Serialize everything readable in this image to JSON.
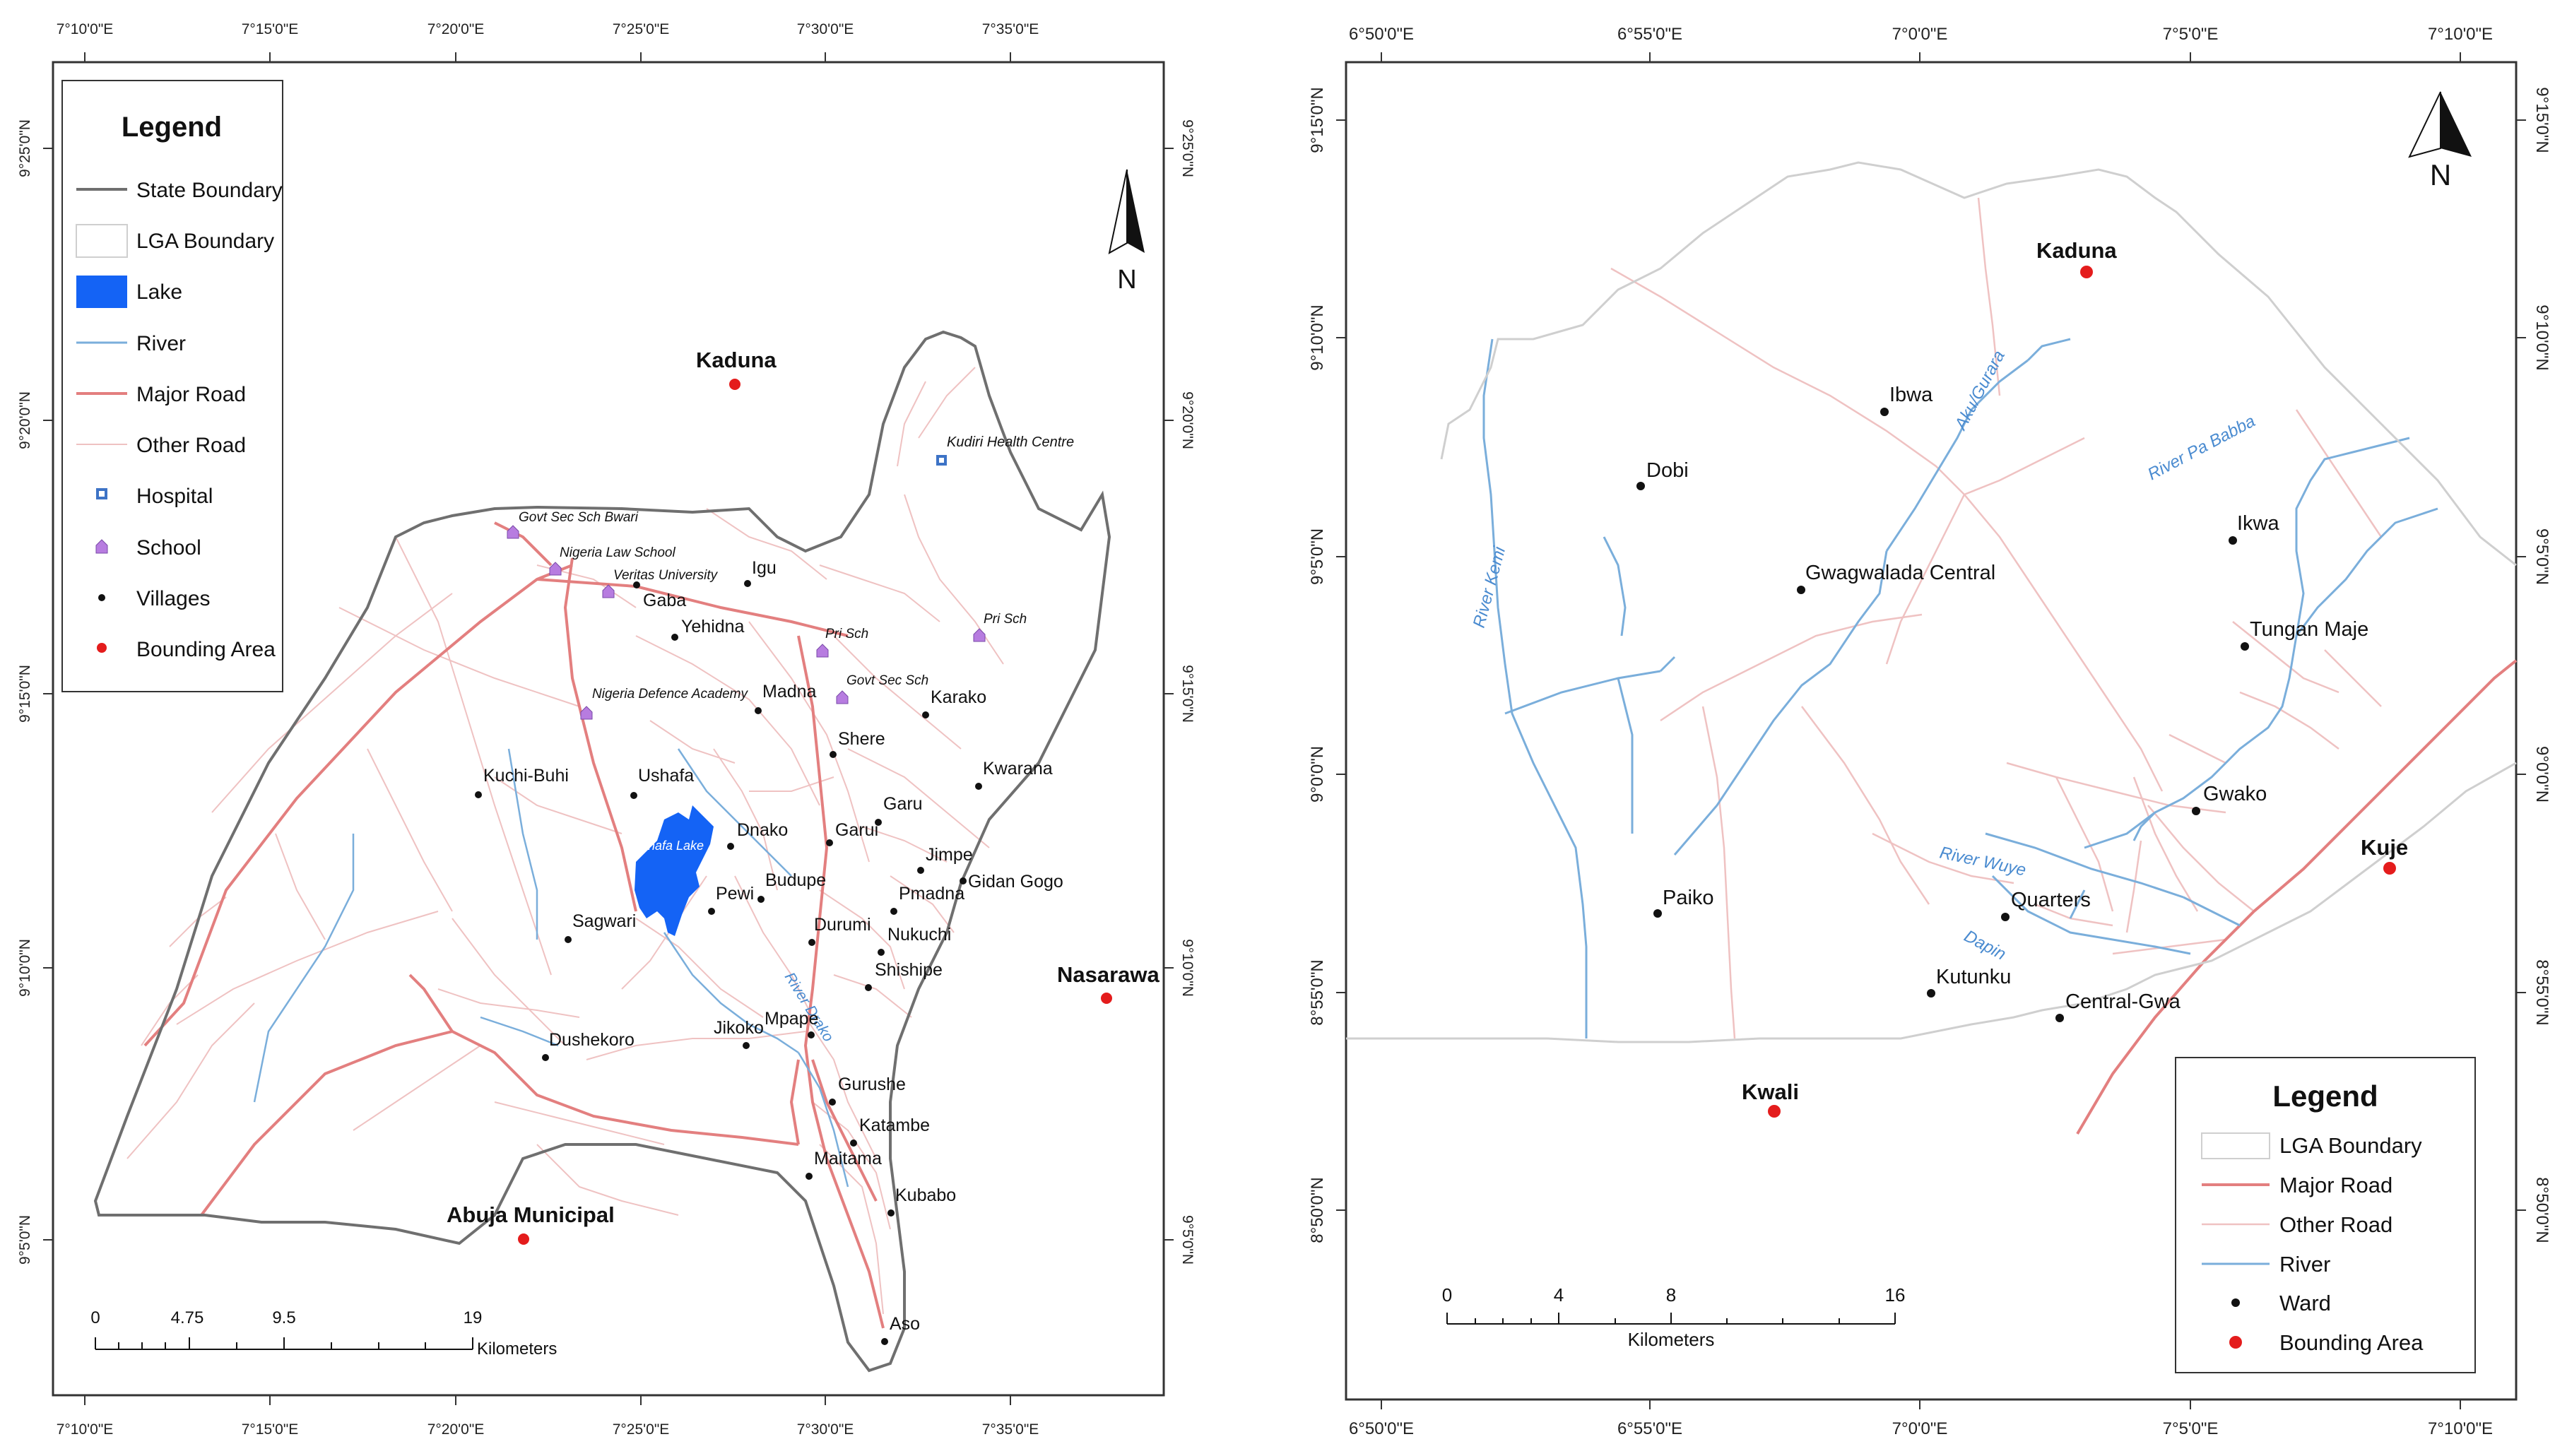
{
  "colors": {
    "state_boundary": "#6f6f6f",
    "lga_boundary": "#cfcfcf",
    "lake": "#1463f5",
    "river": "#7aaedb",
    "major_road": "#e37f7f",
    "other_road": "#efc2c2",
    "school": "#b77ce0",
    "hospital": "#3d73c6",
    "village": "#111111",
    "bounding_area": "#e41c1c"
  },
  "left_map": {
    "top_lon_labels": [
      "7°10'0\"E",
      "7°15'0\"E",
      "7°20'0\"E",
      "7°25'0\"E",
      "7°30'0\"E",
      "7°35'0\"E"
    ],
    "bottom_lon_labels": [
      "7°10'0\"E",
      "7°15'0\"E",
      "7°20'0\"E",
      "7°25'0\"E",
      "7°30'0\"E",
      "7°35'0\"E"
    ],
    "lat_labels": [
      "9°25'0\"N",
      "9°20'0\"N",
      "9°15'0\"N",
      "9°10'0\"N",
      "9°5'0\"N"
    ],
    "north_label": "N",
    "legend": {
      "title": "Legend",
      "items": [
        {
          "label": "State Boundary",
          "symbol": "state-boundary"
        },
        {
          "label": "LGA Boundary",
          "symbol": "lga-boundary"
        },
        {
          "label": "Lake",
          "symbol": "lake"
        },
        {
          "label": "River",
          "symbol": "river"
        },
        {
          "label": "Major Road",
          "symbol": "major-road"
        },
        {
          "label": "Other Road",
          "symbol": "other-road"
        },
        {
          "label": "Hospital",
          "symbol": "hospital"
        },
        {
          "label": "School",
          "symbol": "school"
        },
        {
          "label": "Villages",
          "symbol": "village"
        },
        {
          "label": "Bounding Area",
          "symbol": "bounding-area"
        }
      ]
    },
    "bounding_areas": [
      "Kaduna",
      "Nasarawa",
      "Abuja Municipal"
    ],
    "villages": [
      "Igu",
      "Gaba",
      "Yehidna",
      "Madna",
      "Karako",
      "Shere",
      "Kuchi-Buhi",
      "Ushafa",
      "Dnako",
      "Garu",
      "Garui",
      "Kwarana",
      "Jimpe",
      "Gidan Gogo",
      "Pewi",
      "Budupe",
      "Pmadna",
      "Sagwari",
      "Durumi",
      "Nukuchi",
      "Shishipe",
      "Dushekoro",
      "Jikoko",
      "Mpape",
      "Gurushe",
      "Katambe",
      "Maitama",
      "Kubabo",
      "Aso"
    ],
    "schools": [
      "Govt Sec Sch Bwari",
      "Nigeria Law School",
      "Veritas University",
      "Pri Sch",
      "Pri Sch",
      "Govt Sec Sch",
      "Nigeria Defence Academy"
    ],
    "hospitals": [
      "Kudiri Health Centre"
    ],
    "lake_label": "Ushafa Lake",
    "river_label": "River Drako",
    "scale": {
      "ticks": [
        "0",
        "4.75",
        "9.5",
        "19"
      ],
      "unit": "Kilometers"
    }
  },
  "right_map": {
    "top_lon_labels": [
      "6°50'0\"E",
      "6°55'0\"E",
      "7°0'0\"E",
      "7°5'0\"E",
      "7°10'0\"E"
    ],
    "bottom_lon_labels": [
      "6°50'0\"E",
      "6°55'0\"E",
      "7°0'0\"E",
      "7°5'0\"E",
      "7°10'0\"E"
    ],
    "lat_labels": [
      "9°15'0\"N",
      "9°10'0\"N",
      "9°5'0\"N",
      "9°0'0\"N",
      "8°55'0\"N",
      "8°50'0\"N"
    ],
    "north_label": "N",
    "legend": {
      "title": "Legend",
      "items": [
        {
          "label": "LGA Boundary",
          "symbol": "lga-boundary"
        },
        {
          "label": "Major Road",
          "symbol": "major-road"
        },
        {
          "label": "Other Road",
          "symbol": "other-road"
        },
        {
          "label": "River",
          "symbol": "river"
        },
        {
          "label": "Ward",
          "symbol": "ward"
        },
        {
          "label": "Bounding Area",
          "symbol": "bounding-area"
        }
      ]
    },
    "bounding_areas": [
      "Kaduna",
      "Kuje",
      "Kwali"
    ],
    "wards": [
      "Ibwa",
      "Dobi",
      "Ikwa",
      "Gwagwalada Central",
      "Tungan Maje",
      "Gwako",
      "Paiko",
      "Quarters",
      "Kutunku",
      "Central-Gwa"
    ],
    "river_labels": [
      "River Kemi",
      "Aku/Gurara",
      "River Pa Babba",
      "River Wuye",
      "Dapin"
    ],
    "scale": {
      "ticks": [
        "0",
        "4",
        "8",
        "16"
      ],
      "unit": "Kilometers"
    }
  }
}
